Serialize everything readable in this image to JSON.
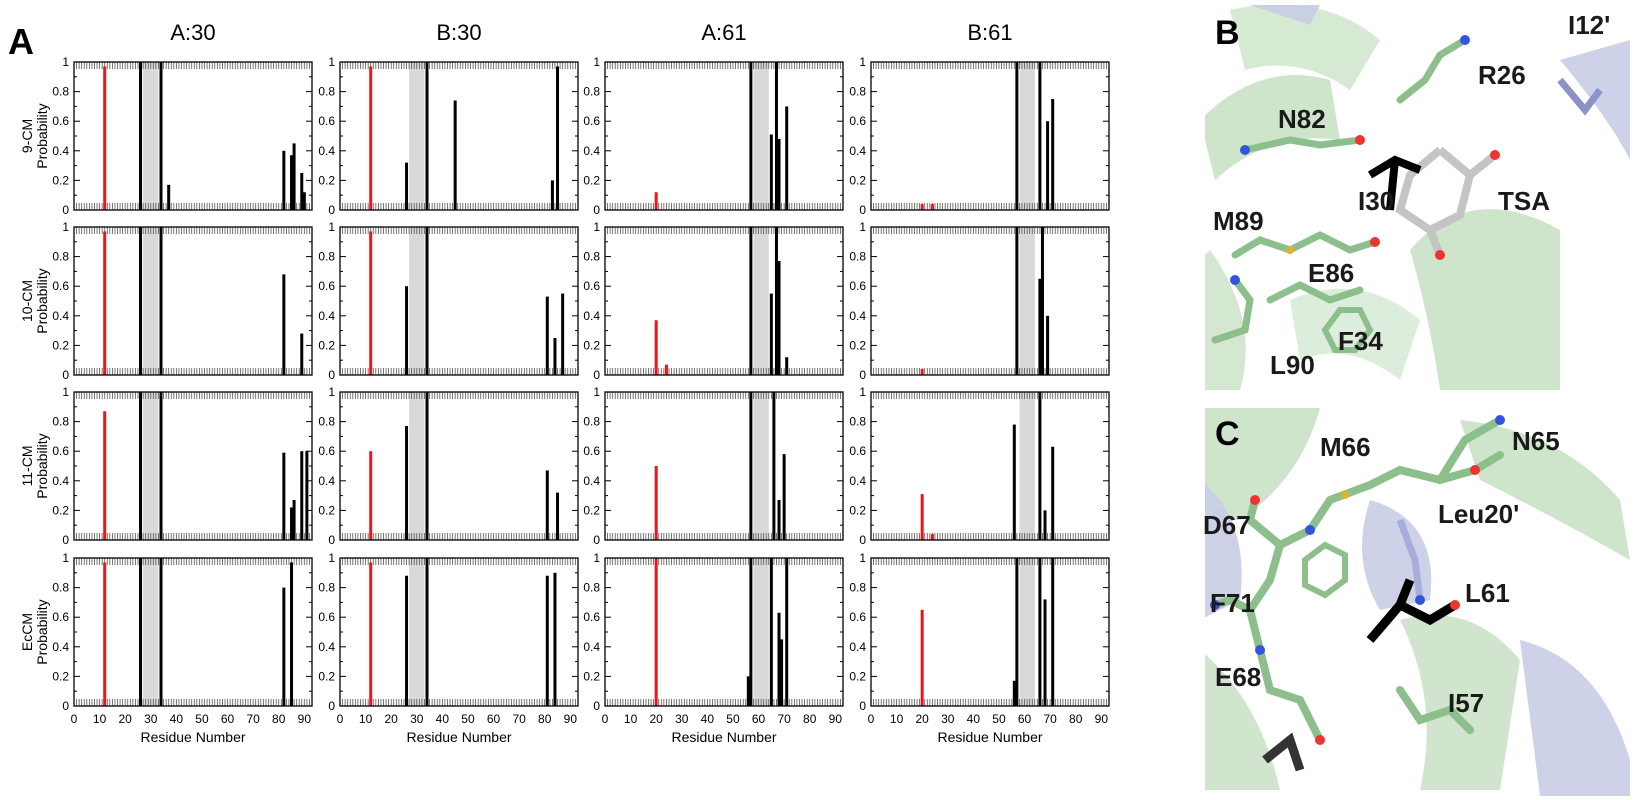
{
  "panel_labels": {
    "a": "A",
    "b": "B",
    "c": "C"
  },
  "colors": {
    "red": "#e8171b",
    "black": "#000000",
    "shade": "#d9d9d9",
    "helix_green": "#c6dfc2",
    "helix_blue": "#c9cde6",
    "stick_green": "#8dbf8c"
  },
  "chart_data": {
    "type": "bar",
    "columns": [
      "A:30",
      "B:30",
      "A:61",
      "B:61"
    ],
    "rows": [
      {
        "name": "9-CM",
        "ylabel": "Probability"
      },
      {
        "name": "10-CM",
        "ylabel": "Probability"
      },
      {
        "name": "11-CM",
        "ylabel": "Probability"
      },
      {
        "name": "EcCM",
        "ylabel": "Probability"
      }
    ],
    "xlabel": "Residue Number",
    "xlim": [
      0,
      93
    ],
    "ylim": [
      0,
      1
    ],
    "x_ticks": [
      "0",
      "10",
      "20",
      "30",
      "40",
      "50",
      "60",
      "70",
      "80",
      "90"
    ],
    "y_ticks": [
      "0",
      "0.2",
      "0.4",
      "0.6",
      "0.8",
      "1"
    ],
    "shaded_regions": [
      [
        27,
        33
      ],
      [
        27,
        33
      ],
      [
        58,
        64
      ],
      [
        58,
        64
      ]
    ],
    "panels": [
      [
        {
          "red": [
            {
              "x": 12,
              "y": 0.97
            }
          ],
          "black": [
            {
              "x": 26,
              "y": 1.0
            },
            {
              "x": 34,
              "y": 1.0
            },
            {
              "x": 37,
              "y": 0.17
            },
            {
              "x": 82,
              "y": 0.4
            },
            {
              "x": 85,
              "y": 0.37
            },
            {
              "x": 86,
              "y": 0.45
            },
            {
              "x": 89,
              "y": 0.25
            },
            {
              "x": 90,
              "y": 0.12
            }
          ]
        },
        {
          "red": [
            {
              "x": 12,
              "y": 0.97
            }
          ],
          "black": [
            {
              "x": 26,
              "y": 0.32
            },
            {
              "x": 34,
              "y": 1.0
            },
            {
              "x": 45,
              "y": 0.74
            },
            {
              "x": 83,
              "y": 0.2
            },
            {
              "x": 85,
              "y": 0.97
            }
          ]
        },
        {
          "red": [
            {
              "x": 20,
              "y": 0.12
            }
          ],
          "black": [
            {
              "x": 57,
              "y": 1.0
            },
            {
              "x": 65,
              "y": 0.51
            },
            {
              "x": 67,
              "y": 1.0
            },
            {
              "x": 68,
              "y": 0.48
            },
            {
              "x": 71,
              "y": 0.7
            }
          ]
        },
        {
          "red": [
            {
              "x": 20,
              "y": 0.04
            },
            {
              "x": 24,
              "y": 0.04
            }
          ],
          "black": [
            {
              "x": 57,
              "y": 1.0
            },
            {
              "x": 66,
              "y": 1.0
            },
            {
              "x": 69,
              "y": 0.6
            },
            {
              "x": 71,
              "y": 0.75
            }
          ]
        }
      ],
      [
        {
          "red": [
            {
              "x": 12,
              "y": 0.97
            }
          ],
          "black": [
            {
              "x": 26,
              "y": 1.0
            },
            {
              "x": 34,
              "y": 1.0
            },
            {
              "x": 82,
              "y": 0.68
            },
            {
              "x": 89,
              "y": 0.28
            }
          ]
        },
        {
          "red": [
            {
              "x": 12,
              "y": 0.97
            }
          ],
          "black": [
            {
              "x": 26,
              "y": 0.6
            },
            {
              "x": 34,
              "y": 1.0
            },
            {
              "x": 81,
              "y": 0.53
            },
            {
              "x": 84,
              "y": 0.25
            },
            {
              "x": 87,
              "y": 0.55
            }
          ]
        },
        {
          "red": [
            {
              "x": 20,
              "y": 0.37
            },
            {
              "x": 24,
              "y": 0.07
            }
          ],
          "black": [
            {
              "x": 57,
              "y": 1.0
            },
            {
              "x": 65,
              "y": 0.55
            },
            {
              "x": 67,
              "y": 1.0
            },
            {
              "x": 68,
              "y": 0.77
            },
            {
              "x": 71,
              "y": 0.12
            }
          ]
        },
        {
          "red": [
            {
              "x": 20,
              "y": 0.04
            }
          ],
          "black": [
            {
              "x": 57,
              "y": 1.0
            },
            {
              "x": 66,
              "y": 0.65
            },
            {
              "x": 67,
              "y": 1.0
            },
            {
              "x": 69,
              "y": 0.4
            }
          ]
        }
      ],
      [
        {
          "red": [
            {
              "x": 12,
              "y": 0.87
            }
          ],
          "black": [
            {
              "x": 26,
              "y": 1.0
            },
            {
              "x": 34,
              "y": 1.0
            },
            {
              "x": 82,
              "y": 0.59
            },
            {
              "x": 85,
              "y": 0.22
            },
            {
              "x": 86,
              "y": 0.27
            },
            {
              "x": 89,
              "y": 0.6
            },
            {
              "x": 91,
              "y": 0.6
            }
          ]
        },
        {
          "red": [
            {
              "x": 12,
              "y": 0.6
            }
          ],
          "black": [
            {
              "x": 26,
              "y": 0.77
            },
            {
              "x": 34,
              "y": 1.0
            },
            {
              "x": 81,
              "y": 0.47
            },
            {
              "x": 85,
              "y": 0.32
            }
          ]
        },
        {
          "red": [
            {
              "x": 20,
              "y": 0.5
            }
          ],
          "black": [
            {
              "x": 57,
              "y": 1.0
            },
            {
              "x": 66,
              "y": 1.0
            },
            {
              "x": 68,
              "y": 0.27
            },
            {
              "x": 70,
              "y": 0.58
            }
          ]
        },
        {
          "red": [
            {
              "x": 20,
              "y": 0.31
            },
            {
              "x": 24,
              "y": 0.04
            }
          ],
          "black": [
            {
              "x": 56,
              "y": 0.78
            },
            {
              "x": 66,
              "y": 1.0
            },
            {
              "x": 68,
              "y": 0.2
            },
            {
              "x": 71,
              "y": 0.63
            }
          ]
        }
      ],
      [
        {
          "red": [
            {
              "x": 12,
              "y": 0.97
            }
          ],
          "black": [
            {
              "x": 26,
              "y": 1.0
            },
            {
              "x": 34,
              "y": 1.0
            },
            {
              "x": 82,
              "y": 0.8
            },
            {
              "x": 85,
              "y": 0.97
            }
          ]
        },
        {
          "red": [
            {
              "x": 12,
              "y": 0.97
            }
          ],
          "black": [
            {
              "x": 26,
              "y": 0.88
            },
            {
              "x": 34,
              "y": 1.0
            },
            {
              "x": 81,
              "y": 0.88
            },
            {
              "x": 84,
              "y": 0.9
            }
          ]
        },
        {
          "red": [
            {
              "x": 20,
              "y": 1.0
            }
          ],
          "black": [
            {
              "x": 56,
              "y": 0.2
            },
            {
              "x": 57,
              "y": 1.0
            },
            {
              "x": 65,
              "y": 1.0
            },
            {
              "x": 68,
              "y": 0.63
            },
            {
              "x": 69,
              "y": 0.45
            },
            {
              "x": 71,
              "y": 1.0
            }
          ]
        },
        {
          "red": [
            {
              "x": 20,
              "y": 0.65
            }
          ],
          "black": [
            {
              "x": 56,
              "y": 0.17
            },
            {
              "x": 57,
              "y": 1.0
            },
            {
              "x": 66,
              "y": 1.0
            },
            {
              "x": 68,
              "y": 0.72
            },
            {
              "x": 71,
              "y": 1.0
            }
          ]
        }
      ]
    ]
  },
  "structure_b": {
    "labels": [
      "I12'",
      "R26",
      "N82",
      "I30",
      "TSA",
      "M89",
      "E86",
      "F34",
      "L90"
    ]
  },
  "structure_c": {
    "labels": [
      "N65",
      "M66",
      "Leu20'",
      "D67",
      "L61",
      "F71",
      "E68",
      "I57"
    ]
  }
}
